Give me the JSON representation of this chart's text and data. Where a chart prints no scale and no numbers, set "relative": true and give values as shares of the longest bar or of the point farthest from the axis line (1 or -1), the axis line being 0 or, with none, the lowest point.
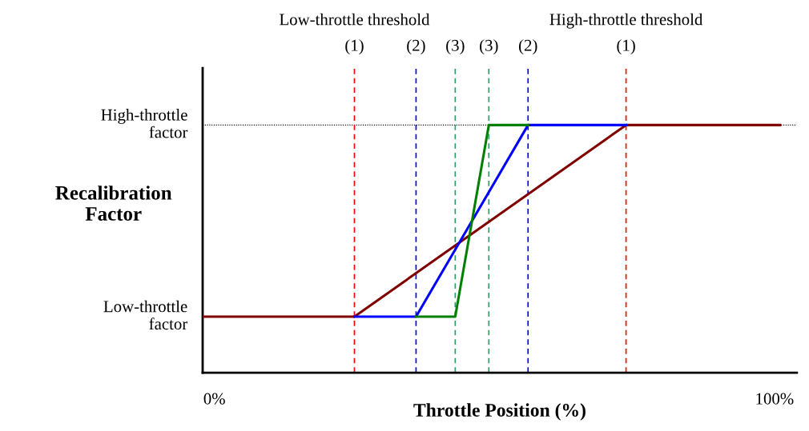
{
  "chart_data": {
    "type": "line",
    "relative": true,
    "xlabel": "Throttle Position (%)",
    "ylabel": "Recalibration\nFactor",
    "series": [
      {
        "color": "#800000",
        "x": [
          -2,
          25,
          73.5,
          101
        ],
        "values": [
          0.226,
          0.226,
          1,
          1
        ]
      },
      {
        "color": "#0000ff",
        "x": [
          25,
          36,
          56,
          73.5
        ],
        "values": [
          0.226,
          0.226,
          1,
          1
        ]
      },
      {
        "color": "#008000",
        "x": [
          36,
          43,
          49,
          56
        ],
        "values": [
          0.226,
          0.226,
          1,
          1
        ]
      }
    ],
    "xlim": [
      -2.1,
      104
    ],
    "xticks": [
      {
        "value": 0,
        "label": "0%"
      },
      {
        "value": 100,
        "label": "100%"
      }
    ],
    "ref_lines": [
      {
        "axis": "y",
        "value": 1,
        "label": "High-throttle\nfactor",
        "color": "#000000",
        "line_style": "dotted"
      },
      {
        "axis": "x",
        "value": 25,
        "color": "#ff0000",
        "line_style": "dashed"
      },
      {
        "axis": "x",
        "value": 36,
        "color": "#0000ff",
        "line_style": "dashed"
      },
      {
        "axis": "x",
        "value": 43,
        "color": "#339966",
        "line_style": "dashed"
      },
      {
        "axis": "x",
        "value": 49,
        "color": "#339966",
        "line_style": "dashed"
      },
      {
        "axis": "x",
        "value": 56,
        "color": "#0000ff",
        "line_style": "dashed"
      },
      {
        "axis": "x",
        "value": 73.5,
        "color": "#ff0000",
        "line_style": "dashed"
      }
    ],
    "annotations": [
      {
        "text": "Low-throttle\nfactor",
        "x": -2,
        "y": 0.226
      },
      "Low-throttle threshold",
      "High-throttle threshold",
      "(1)",
      "(2)",
      "(3)",
      "(3)",
      "(2)",
      "(1)"
    ],
    "grid": false,
    "legend": false,
    "marker": "none",
    "line_style": "solid"
  }
}
